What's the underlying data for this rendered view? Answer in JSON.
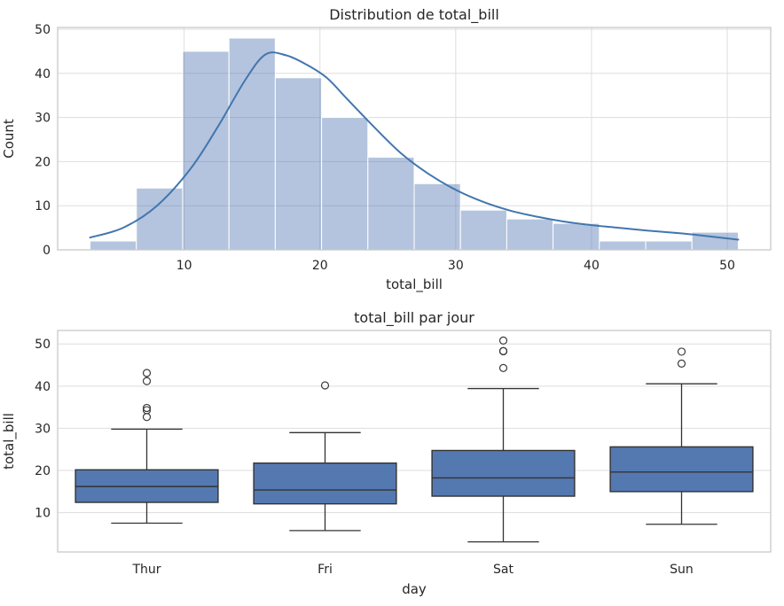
{
  "figure": {
    "background": "#ffffff",
    "text_color": "#262626",
    "grid_color": "#dddddd",
    "spine_color": "#c9c9c9"
  },
  "chart_data": [
    {
      "type": "histogram",
      "title": "Distribution de total_bill",
      "xlabel": "total_bill",
      "ylabel": "Count",
      "xlim": [
        0.683,
        53.197
      ],
      "ylim": [
        0,
        50.4
      ],
      "xticks": [
        10,
        20,
        30,
        40,
        50
      ],
      "yticks": [
        0,
        10,
        20,
        30,
        40,
        50
      ],
      "grid": "both",
      "bar_fill": "rgba(76,114,176,0.42)",
      "bar_edge": "#ffffff",
      "kde_color": "#4276ae",
      "bin_edges": [
        3.07,
        6.48,
        9.89,
        13.3,
        16.71,
        20.12,
        23.53,
        26.94,
        30.35,
        33.76,
        37.17,
        40.58,
        43.99,
        47.4,
        50.81
      ],
      "counts": [
        2,
        14,
        45,
        48,
        39,
        30,
        21,
        15,
        9,
        7,
        6,
        2,
        2,
        4
      ],
      "kde": {
        "x": [
          3.07,
          5.5,
          8,
          10.5,
          12.5,
          14.5,
          16.0,
          17.5,
          19,
          20.5,
          22,
          24,
          26,
          28,
          30,
          32,
          34,
          36,
          38,
          40,
          42,
          44,
          46,
          48,
          50.81
        ],
        "y": [
          2.8,
          5.0,
          10,
          18.5,
          28,
          38.5,
          44.3,
          44.1,
          42,
          39,
          34.2,
          27.8,
          21.8,
          17.2,
          13.6,
          10.9,
          8.9,
          7.5,
          6.4,
          5.6,
          5.0,
          4.4,
          3.9,
          3.3,
          2.3
        ]
      }
    },
    {
      "type": "box",
      "title": "total_bill par jour",
      "xlabel": "day",
      "ylabel": "total_bill",
      "ylim": [
        0.683,
        53.197
      ],
      "yticks": [
        10,
        20,
        30,
        40,
        50
      ],
      "grid": "y",
      "box_fill": "#5478b0",
      "line_color": "#333333",
      "categories": [
        "Thur",
        "Fri",
        "Sat",
        "Sun"
      ],
      "boxes": [
        {
          "whislo": 7.51,
          "q1": 12.44,
          "med": 16.2,
          "q3": 20.16,
          "whishi": 29.8,
          "fliers": [
            32.68,
            34.3,
            34.83,
            41.19,
            43.11
          ]
        },
        {
          "whislo": 5.75,
          "q1": 12.09,
          "med": 15.38,
          "q3": 21.75,
          "whishi": 28.97,
          "fliers": [
            40.17
          ]
        },
        {
          "whislo": 3.07,
          "q1": 13.91,
          "med": 18.24,
          "q3": 24.74,
          "whishi": 39.42,
          "fliers": [
            44.3,
            48.27,
            48.33,
            50.81
          ]
        },
        {
          "whislo": 7.25,
          "q1": 14.99,
          "med": 19.63,
          "q3": 25.6,
          "whishi": 40.55,
          "fliers": [
            45.35,
            48.17
          ]
        }
      ]
    }
  ]
}
